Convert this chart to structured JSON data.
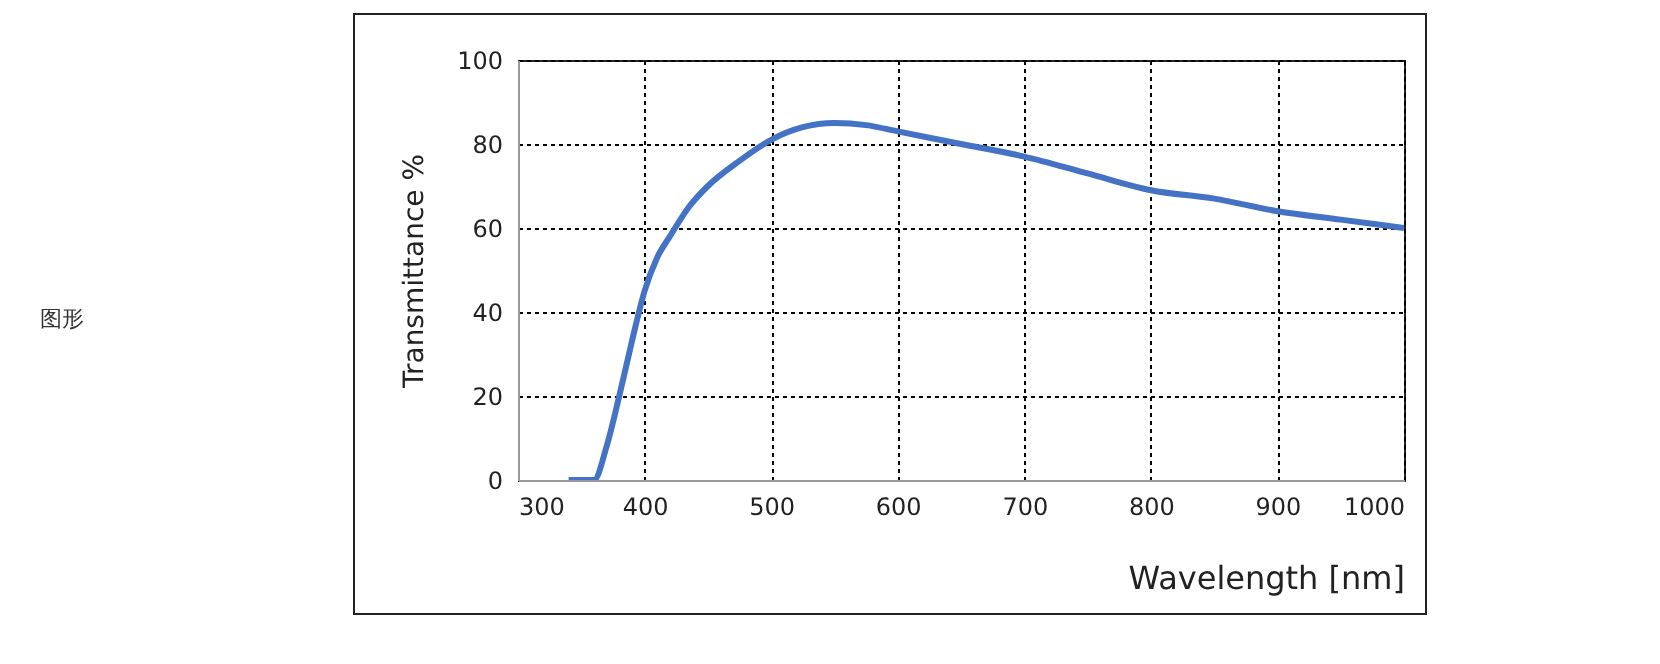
{
  "chart_data": {
    "type": "line",
    "x": [
      340,
      360,
      370,
      380,
      390,
      400,
      410,
      420,
      435,
      450,
      475,
      500,
      525,
      550,
      575,
      600,
      650,
      700,
      750,
      800,
      850,
      900,
      950,
      1000
    ],
    "series": [
      {
        "color": "#4472c4",
        "values": [
          0,
          0,
          8,
          20,
          33,
          45,
          53,
          58,
          65,
          70,
          76,
          81,
          84,
          85,
          84.5,
          83,
          80,
          77,
          73,
          69,
          67,
          64,
          62,
          60
        ]
      }
    ],
    "xlim": [
      300,
      1000
    ],
    "xticks": [
      300,
      400,
      500,
      600,
      700,
      800,
      900,
      1000
    ],
    "ylim": [
      0,
      100
    ],
    "yticks": [
      0,
      20,
      40,
      60,
      80,
      100
    ],
    "xlabel": "Wavelength [nm]",
    "ylabel": "Transmittance %",
    "grid": true,
    "line_style": "solid",
    "marker": "none",
    "annotations": [
      "图形"
    ]
  }
}
